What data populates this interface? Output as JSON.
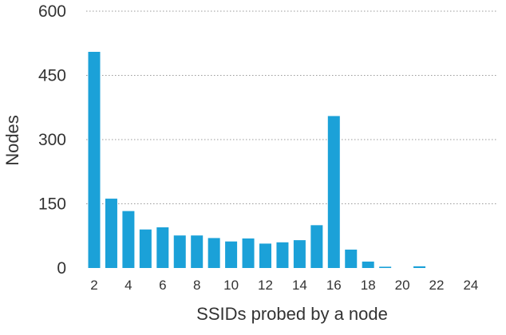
{
  "chart_data": {
    "type": "bar",
    "title": "",
    "xlabel": "SSIDs probed by a node",
    "ylabel": "Nodes",
    "categories": [
      2,
      3,
      4,
      5,
      6,
      7,
      8,
      9,
      10,
      11,
      12,
      13,
      14,
      15,
      16,
      17,
      18,
      19,
      20,
      21,
      22,
      23,
      24
    ],
    "values": [
      505,
      162,
      133,
      90,
      95,
      76,
      76,
      70,
      62,
      69,
      57,
      60,
      65,
      100,
      355,
      43,
      15,
      3,
      0,
      4,
      0,
      0,
      0
    ],
    "x_tick_labels": [
      "2",
      "4",
      "6",
      "8",
      "10",
      "12",
      "14",
      "16",
      "18",
      "20",
      "22",
      "24"
    ],
    "y_ticks": [
      0,
      150,
      300,
      450,
      600
    ],
    "ylim": [
      0,
      600
    ],
    "grid": "horizontal-dotted",
    "legend": "none",
    "bar_color": "#1ba1d8"
  }
}
